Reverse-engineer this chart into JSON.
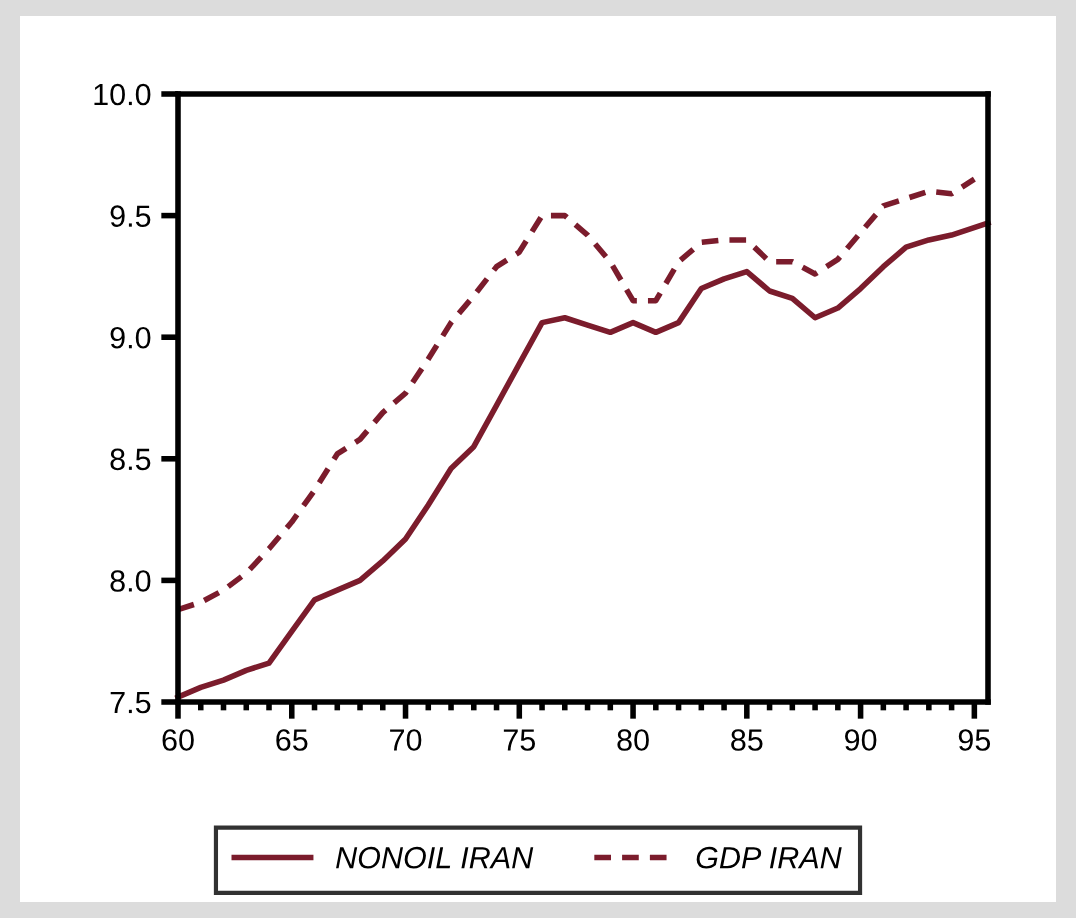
{
  "chart_data": {
    "type": "line",
    "xlim": [
      60,
      95.6
    ],
    "ylim": [
      7.5,
      10.0
    ],
    "xticks": [
      60,
      65,
      70,
      75,
      80,
      85,
      90,
      95
    ],
    "yticks": [
      {
        "value": 7.5,
        "label": "7.5"
      },
      {
        "value": 8.0,
        "label": "8.0"
      },
      {
        "value": 8.5,
        "label": "8.5"
      },
      {
        "value": 9.0,
        "label": "9.0"
      },
      {
        "value": 9.5,
        "label": "9.5"
      },
      {
        "value": 10.0,
        "label": "10.0"
      }
    ],
    "legend": "bottom",
    "grid": false,
    "marker": "none",
    "series": [
      {
        "name": "NONOIL IRAN",
        "color": "#7b1c2c",
        "line_style": "solid",
        "x": [
          60,
          61,
          62,
          63,
          64,
          65,
          66,
          67,
          68,
          69,
          70,
          71,
          72,
          73,
          74,
          75,
          76,
          77,
          78,
          79,
          80,
          81,
          82,
          83,
          84,
          85,
          86,
          87,
          88,
          89,
          90,
          91,
          92,
          93,
          94,
          95.6
        ],
        "values": [
          7.52,
          7.56,
          7.59,
          7.63,
          7.66,
          7.79,
          7.92,
          7.96,
          8.0,
          8.08,
          8.17,
          8.31,
          8.46,
          8.55,
          8.72,
          8.89,
          9.06,
          9.08,
          9.05,
          9.02,
          9.06,
          9.02,
          9.06,
          9.2,
          9.24,
          9.27,
          9.19,
          9.16,
          9.08,
          9.12,
          9.2,
          9.29,
          9.37,
          9.4,
          9.42,
          9.47
        ]
      },
      {
        "name": "GDP IRAN",
        "color": "#7b1c2c",
        "line_style": "dashed",
        "x": [
          60,
          61,
          62,
          63,
          64,
          65,
          66,
          67,
          68,
          69,
          70,
          71,
          72,
          73,
          74,
          75,
          76,
          77,
          78,
          79,
          80,
          81,
          82,
          83,
          84,
          85,
          86,
          87,
          88,
          89,
          90,
          91,
          92,
          93,
          94,
          95
        ],
        "values": [
          7.88,
          7.91,
          7.96,
          8.03,
          8.13,
          8.24,
          8.37,
          8.52,
          8.58,
          8.69,
          8.77,
          8.91,
          9.06,
          9.17,
          9.29,
          9.35,
          9.5,
          9.5,
          9.42,
          9.31,
          9.15,
          9.15,
          9.31,
          9.39,
          9.4,
          9.4,
          9.31,
          9.31,
          9.26,
          9.32,
          9.43,
          9.54,
          9.57,
          9.6,
          9.59,
          9.65
        ]
      }
    ]
  }
}
